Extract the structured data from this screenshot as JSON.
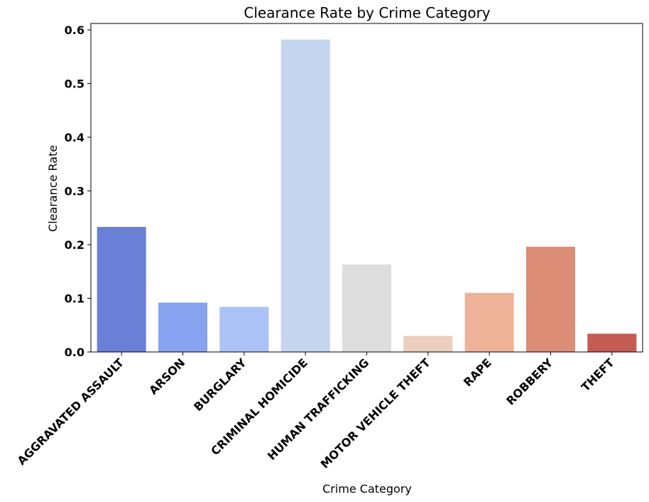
{
  "chart_data": {
    "type": "bar",
    "title": "Clearance Rate by Crime Category",
    "xlabel": "Crime Category",
    "ylabel": "Clearance Rate",
    "ylim": [
      0,
      0.612
    ],
    "yticks": [
      "0.0",
      "0.1",
      "0.2",
      "0.3",
      "0.4",
      "0.5",
      "0.6"
    ],
    "grid": false,
    "categories": [
      "AGGRAVATED ASSAULT",
      "ARSON",
      "BURGLARY",
      "CRIMINAL HOMICIDE",
      "HUMAN TRAFFICKING",
      "MOTOR VEHICLE THEFT",
      "RAPE",
      "ROBBERY",
      "THEFT"
    ],
    "values": [
      0.233,
      0.092,
      0.084,
      0.582,
      0.163,
      0.03,
      0.11,
      0.196,
      0.034
    ],
    "colors": [
      "#6a80d6",
      "#87a3f0",
      "#aac2f5",
      "#c6d5ef",
      "#dddddd",
      "#eccfc0",
      "#ecb399",
      "#dc8d75",
      "#c55c53"
    ]
  }
}
